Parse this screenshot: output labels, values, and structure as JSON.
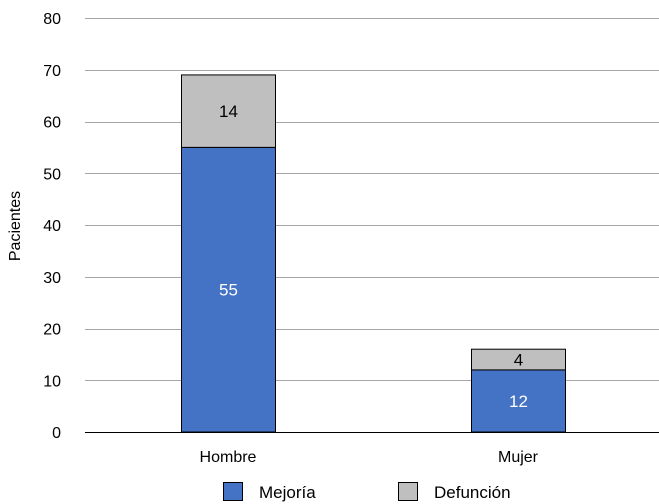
{
  "chart_data": {
    "type": "bar",
    "stacked": true,
    "categories": [
      "Hombre",
      "Mujer"
    ],
    "series": [
      {
        "name": "Mejoría",
        "values": [
          55,
          12
        ],
        "color": "#4472c4",
        "label_color": "#ffffff"
      },
      {
        "name": "Defunción",
        "values": [
          14,
          4
        ],
        "color": "#bfbfbf",
        "label_color": "#000000"
      }
    ],
    "title": "",
    "xlabel": "",
    "ylabel": "Pacientes",
    "ylim": [
      0,
      80
    ],
    "yticks": [
      0,
      10,
      20,
      30,
      40,
      50,
      60,
      70,
      80
    ],
    "grid": true,
    "legend": "bottom"
  }
}
